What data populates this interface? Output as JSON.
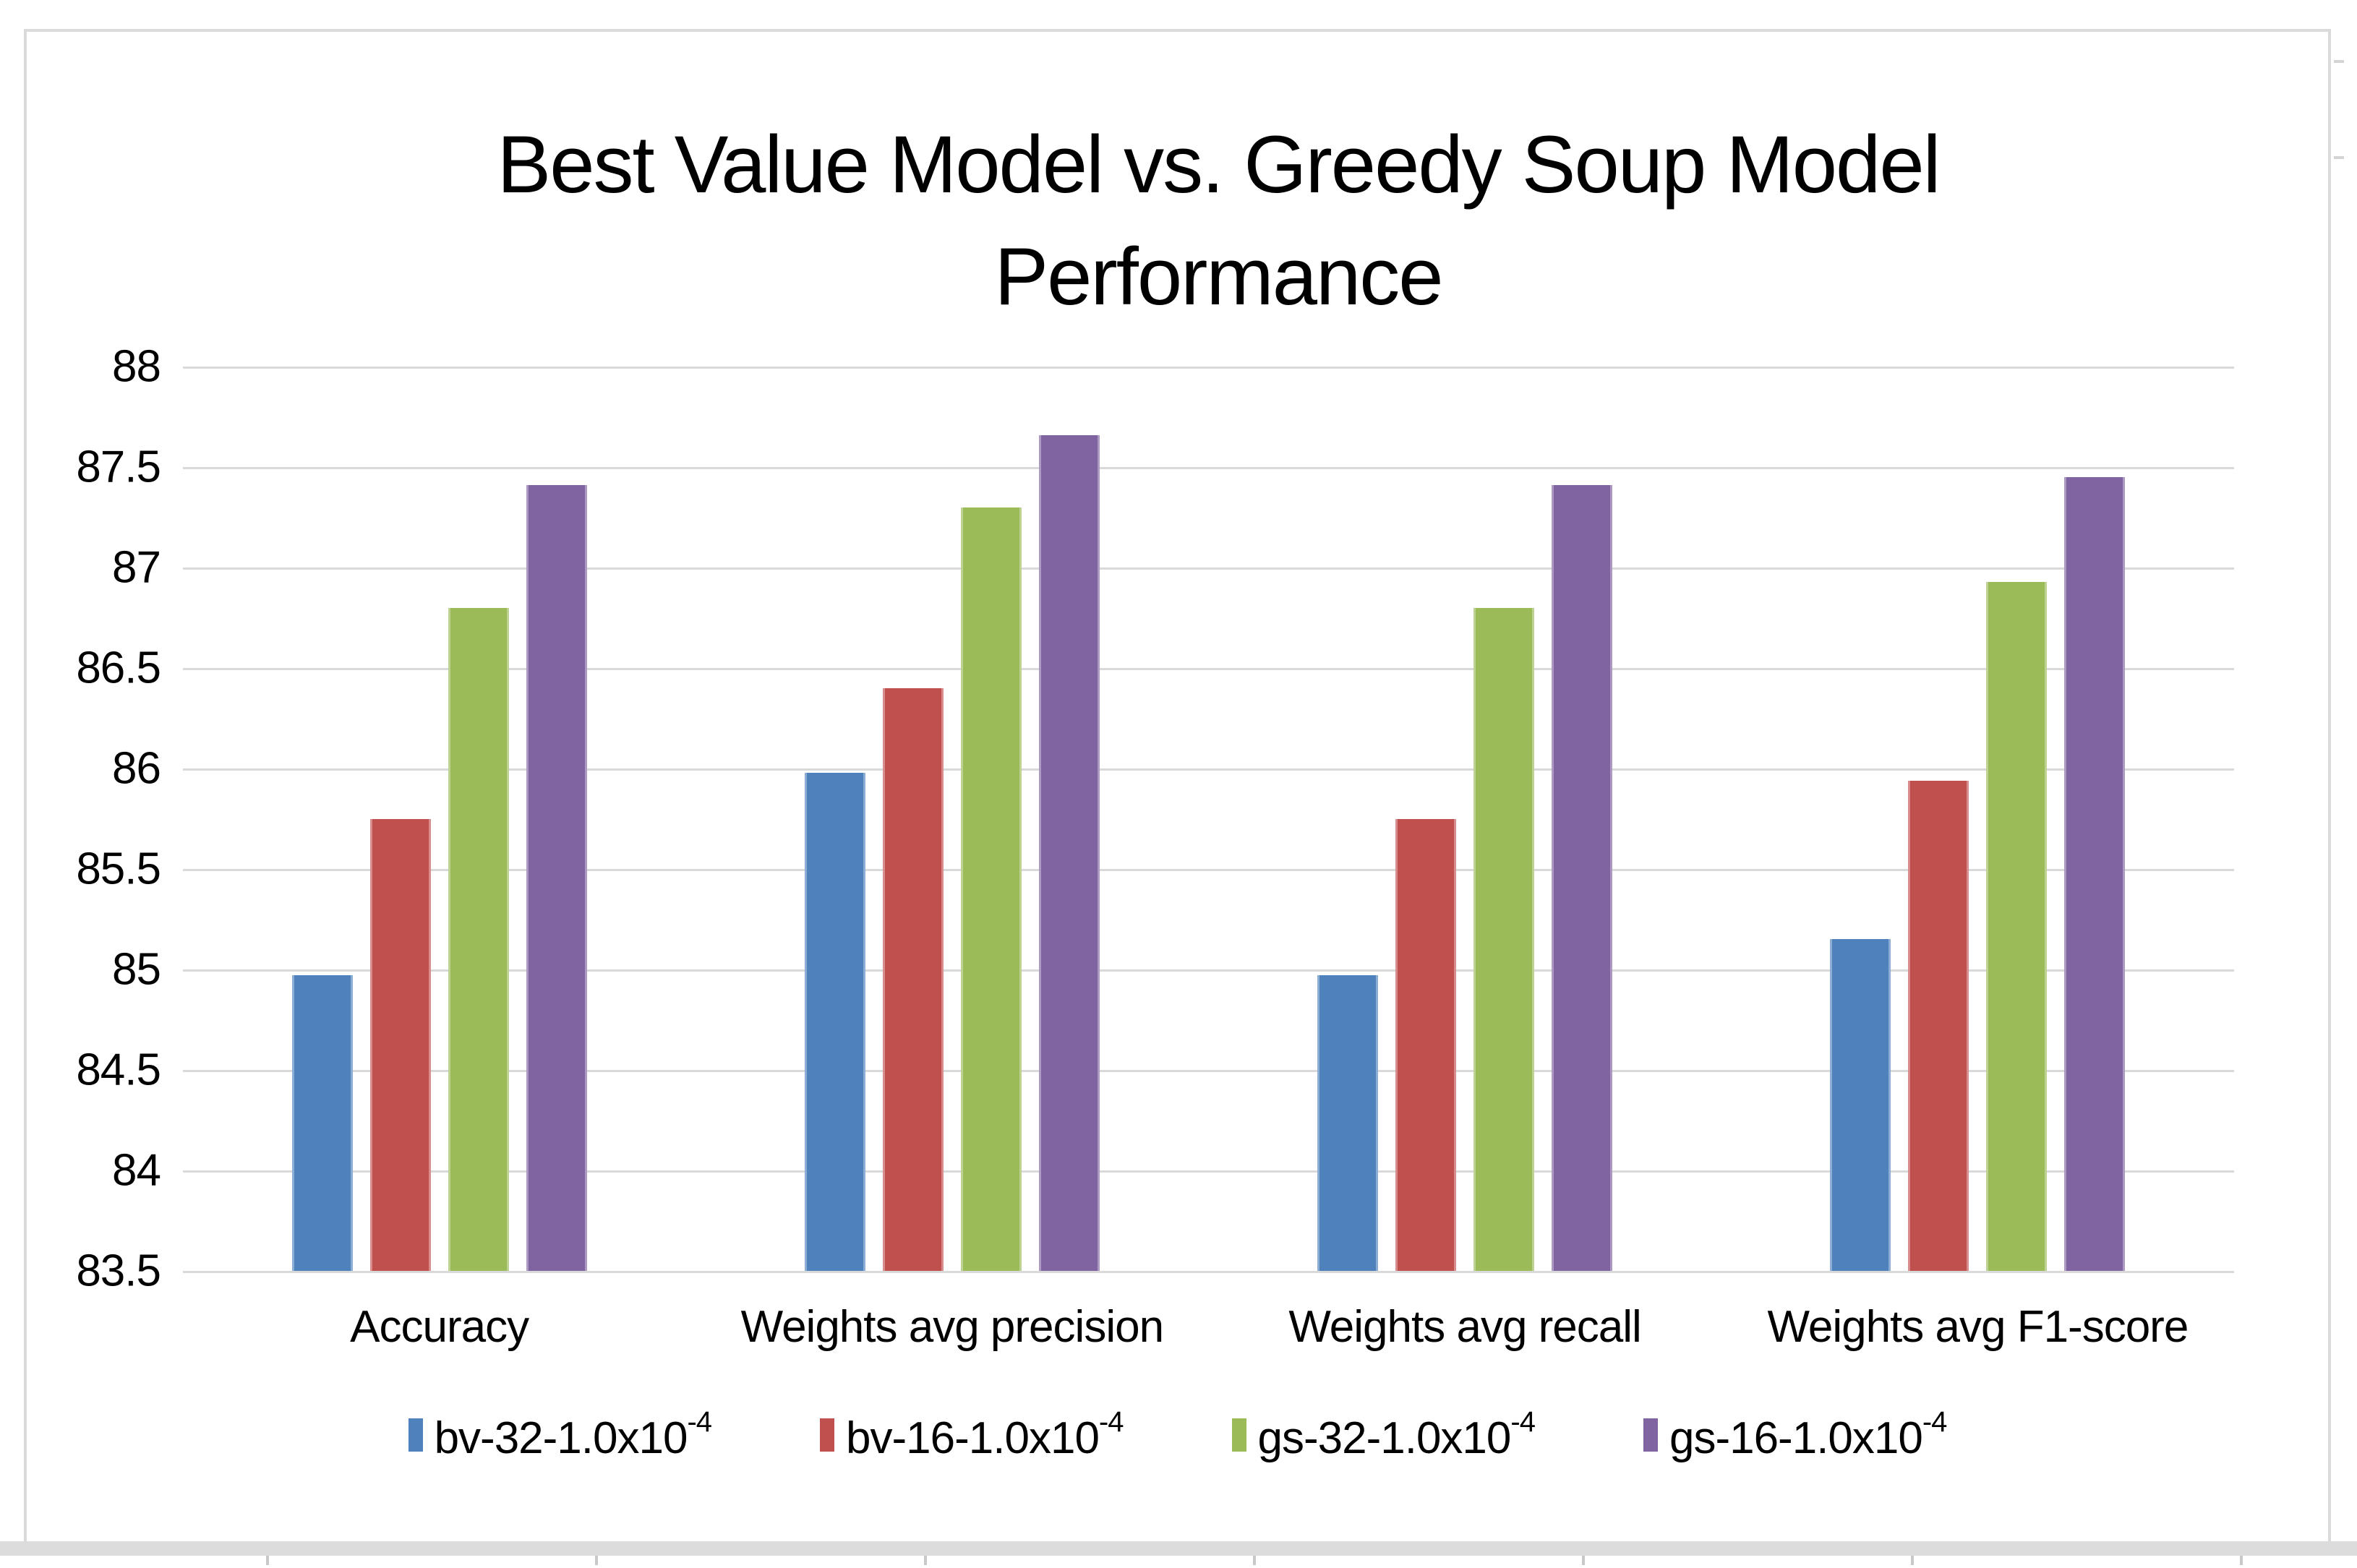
{
  "title": {
    "line1": "Best Value Model vs. Greedy Soup Model",
    "line2": "Performance"
  },
  "colors": {
    "series_blue": "#4F81BD",
    "series_red": "#C0504D",
    "series_green": "#9BBB59",
    "series_purple": "#8064A2",
    "gridline": "#D9D9D9",
    "frame_border": "#DADADA",
    "text": "#000000"
  },
  "chart_data": {
    "type": "bar",
    "title": "Best Value Model vs. Greedy Soup Model Performance",
    "categories": [
      "Accuracy",
      "Weights avg precision",
      "Weights avg recall",
      "Weights avg F1-score"
    ],
    "series": [
      {
        "name_base": "bv-32-1.0x10",
        "name_exp": "-4",
        "color": "#4F81BD",
        "values": [
          84.97,
          85.98,
          84.97,
          85.15
        ]
      },
      {
        "name_base": "bv-16-1.0x10",
        "name_exp": "-4",
        "color": "#C0504D",
        "values": [
          85.75,
          86.4,
          85.75,
          85.94
        ]
      },
      {
        "name_base": "gs-32-1.0x10",
        "name_exp": "-4",
        "color": "#9BBB59",
        "values": [
          86.8,
          87.3,
          86.8,
          86.93
        ]
      },
      {
        "name_base": "gs-16-1.0x10",
        "name_exp": "-4",
        "color": "#8064A2",
        "values": [
          87.41,
          87.66,
          87.41,
          87.45
        ]
      }
    ],
    "xlabel": "",
    "ylabel": "",
    "ylim": [
      83.5,
      88
    ],
    "ytick_step": 0.5,
    "yticks": [
      "88",
      "87.5",
      "87",
      "86.5",
      "86",
      "85.5",
      "85",
      "84.5",
      "84",
      "83.5"
    ],
    "grid": true,
    "legend_position": "bottom"
  }
}
